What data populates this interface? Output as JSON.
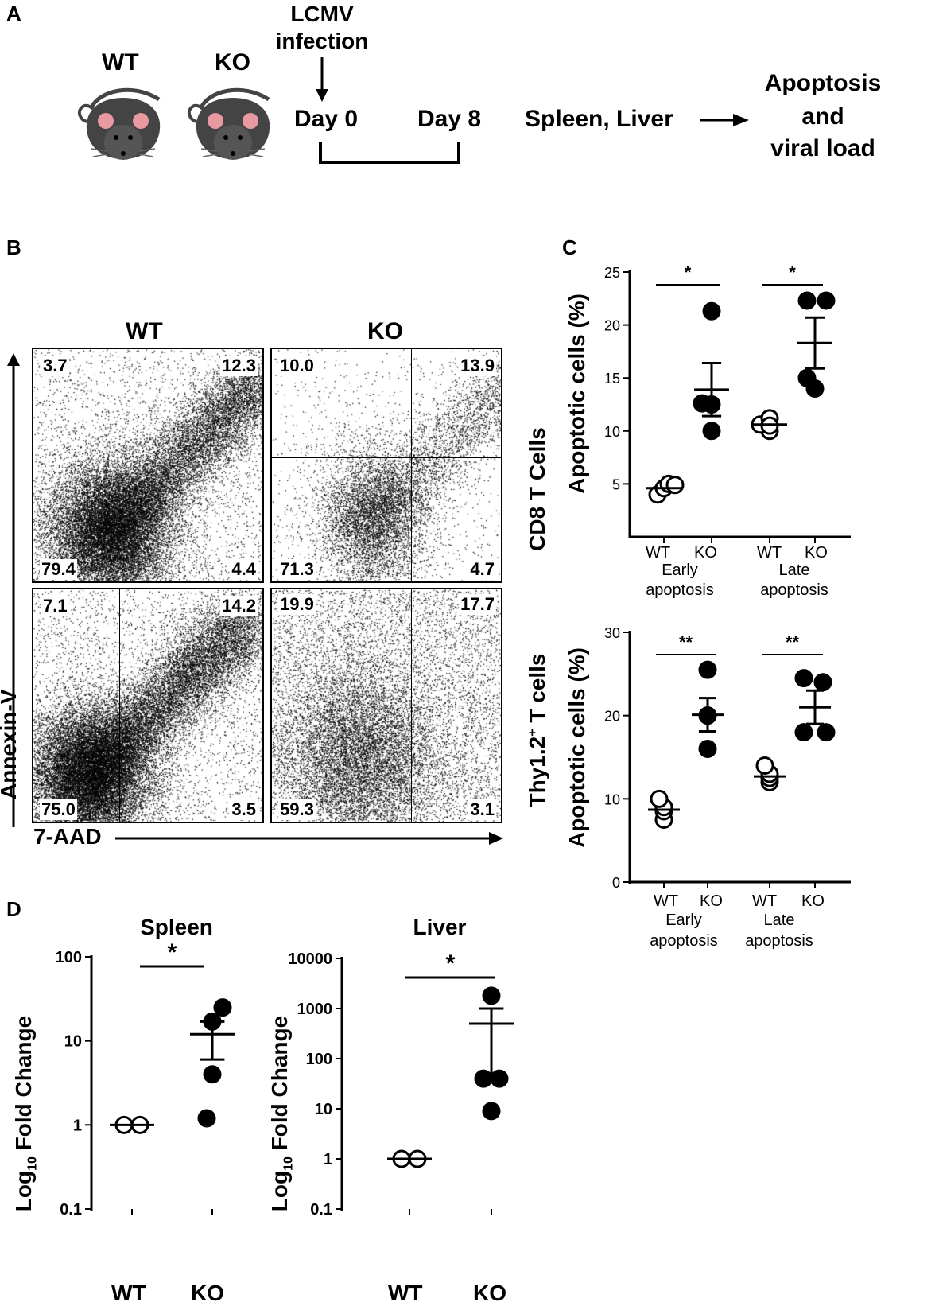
{
  "panelA": {
    "letter": "A",
    "wt_label": "WT",
    "ko_label": "KO",
    "infection_line1": "LCMV",
    "infection_line2": "infection",
    "day0": "Day 0",
    "day8": "Day 8",
    "organs": "Spleen, Liver",
    "outcome_line1": "Apoptosis",
    "outcome_line2": "and",
    "outcome_line3": "viral load"
  },
  "panelB": {
    "letter": "B",
    "col_wt": "WT",
    "col_ko": "KO",
    "row1_label": "CD8 T Cells",
    "row2_label_main": "Thy1.2",
    "row2_label_sup": "+",
    "row2_label_tail": " T cells",
    "y_axis": "Annexin-V",
    "x_axis": "7-AAD",
    "plots": [
      {
        "id": "wt-cd8",
        "tl": "3.7",
        "tr": "12.3",
        "bl": "79.4",
        "br": "4.4"
      },
      {
        "id": "ko-cd8",
        "tl": "10.0",
        "tr": "13.9",
        "bl": "71.3",
        "br": "4.7"
      },
      {
        "id": "wt-thy",
        "tl": "7.1",
        "tr": "14.2",
        "bl": "75.0",
        "br": "3.5"
      },
      {
        "id": "ko-thy",
        "tl": "19.9",
        "tr": "17.7",
        "bl": "59.3",
        "br": "3.1"
      }
    ]
  },
  "panelC": {
    "letter": "C",
    "y_label": "Apoptotic cells (%)",
    "group_early_line1": "Early",
    "group_early_line2": "apoptosis",
    "group_late_line1": "Late",
    "group_late_line2": "apoptosis",
    "wt": "WT",
    "ko": "KO"
  },
  "panelD": {
    "letter": "D",
    "y_label_main": "Log",
    "y_label_sub": "10",
    "y_label_tail": " Fold Change",
    "wt": "WT",
    "ko": "KO"
  },
  "chart_data": [
    {
      "type": "scatter",
      "id": "C-top",
      "ylabel": "Apoptotic cells (%)",
      "ylim": [
        0,
        25
      ],
      "yticks": [
        5,
        10,
        15,
        20,
        25
      ],
      "categories": [
        "WT Early",
        "KO Early",
        "WT Late",
        "KO Late"
      ],
      "series": [
        {
          "group": "WT Early",
          "filled": false,
          "values": [
            4.0,
            4.6,
            5.0,
            4.9
          ],
          "mean": 4.6
        },
        {
          "group": "KO Early",
          "filled": true,
          "values": [
            21.3,
            12.5,
            12.6,
            10.0
          ],
          "mean": 13.9,
          "sem": 2.5
        },
        {
          "group": "WT Late",
          "filled": false,
          "values": [
            10.0,
            10.6,
            11.2,
            10.5
          ],
          "mean": 10.6
        },
        {
          "group": "KO Late",
          "filled": true,
          "values": [
            22.3,
            22.3,
            14.0,
            15.0
          ],
          "mean": 18.3,
          "sem": 2.4
        }
      ],
      "significance": [
        {
          "pair": [
            "WT Early",
            "KO Early"
          ],
          "label": "*"
        },
        {
          "pair": [
            "WT Late",
            "KO Late"
          ],
          "label": "*"
        }
      ]
    },
    {
      "type": "scatter",
      "id": "C-bottom",
      "ylabel": "Apoptotic cells (%)",
      "ylim": [
        0,
        30
      ],
      "yticks": [
        0,
        10,
        20,
        30
      ],
      "categories": [
        "WT Early",
        "KO Early",
        "WT Late",
        "KO Late"
      ],
      "series": [
        {
          "group": "WT Early",
          "filled": false,
          "values": [
            7.5,
            8.5,
            9.0,
            10.0
          ],
          "mean": 8.7
        },
        {
          "group": "KO Early",
          "filled": true,
          "values": [
            25.5,
            20.0,
            20.0,
            16.0
          ],
          "mean": 20.1,
          "sem": 2.0
        },
        {
          "group": "WT Late",
          "filled": false,
          "values": [
            12.0,
            12.5,
            13.0,
            14.0
          ],
          "mean": 12.7
        },
        {
          "group": "KO Late",
          "filled": true,
          "values": [
            24.5,
            24.0,
            18.0,
            18.0
          ],
          "mean": 21.0,
          "sem": 2.0
        }
      ],
      "significance": [
        {
          "pair": [
            "WT Early",
            "KO Early"
          ],
          "label": "**"
        },
        {
          "pair": [
            "WT Late",
            "KO Late"
          ],
          "label": "**"
        }
      ]
    },
    {
      "type": "scatter",
      "id": "D-spleen",
      "title": "Spleen",
      "ylabel": "Log10 Fold Change",
      "yscale": "log",
      "ylim": [
        0.1,
        100
      ],
      "yticks": [
        "0.1",
        "1",
        "10",
        "100"
      ],
      "categories": [
        "WT",
        "KO"
      ],
      "series": [
        {
          "group": "WT",
          "filled": false,
          "values": [
            1,
            1
          ],
          "mean": 1
        },
        {
          "group": "KO",
          "filled": true,
          "values": [
            25,
            17,
            4,
            1.2
          ],
          "mean": 12,
          "sem_low": 6,
          "sem_high": 17
        }
      ],
      "significance": [
        {
          "pair": [
            "WT",
            "KO"
          ],
          "label": "*"
        }
      ]
    },
    {
      "type": "scatter",
      "id": "D-liver",
      "title": "Liver",
      "ylabel": "Log10 Fold Change",
      "yscale": "log",
      "ylim": [
        0.1,
        10000
      ],
      "yticks": [
        "0.1",
        "1",
        "10",
        "100",
        "1000",
        "10000"
      ],
      "categories": [
        "WT",
        "KO"
      ],
      "series": [
        {
          "group": "WT",
          "filled": false,
          "values": [
            1,
            1
          ],
          "mean": 1
        },
        {
          "group": "KO",
          "filled": true,
          "values": [
            1800,
            40,
            40,
            9
          ],
          "mean": 500,
          "sem_low": 40,
          "sem_high": 1000
        }
      ],
      "significance": [
        {
          "pair": [
            "WT",
            "KO"
          ],
          "label": "*"
        }
      ]
    }
  ]
}
